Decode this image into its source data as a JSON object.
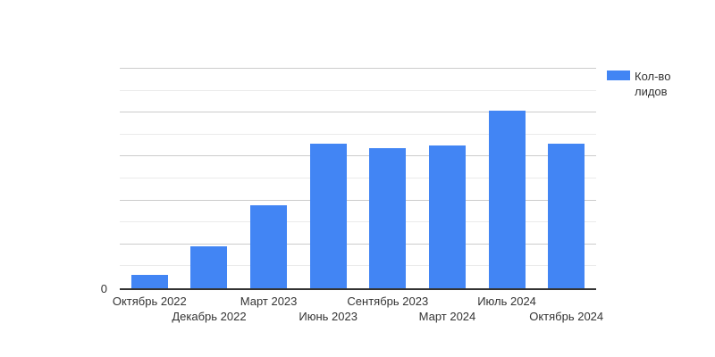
{
  "chart_data": {
    "type": "bar",
    "title": "",
    "xlabel": "",
    "ylabel": "",
    "categories": [
      "Октябрь 2022",
      "Декабрь 2022",
      "Март 2023",
      "Июнь 2023",
      "Сентябрь 2023",
      "Март 2024",
      "Июль 2024",
      "Октябрь 2024"
    ],
    "series": [
      {
        "name": "Кол-во лидов",
        "values": [
          6,
          19,
          38,
          66,
          64,
          65,
          81,
          66
        ]
      }
    ],
    "ylim": [
      0,
      100
    ],
    "y_axis_tick_labels": [
      "0"
    ],
    "gridlines": {
      "minor_step": 10,
      "major_step": 20,
      "major_color": "#cccccc",
      "minor_color": "#ebebeb"
    },
    "legend_position": "right",
    "grid": true
  },
  "axes": {
    "y_zero_label": "0"
  },
  "legend": {
    "label": "Кол-во лидов",
    "swatch_color": "#4285f4"
  },
  "colors": {
    "bar": "#4285f4",
    "axis_line": "#333333",
    "text": "#333333",
    "major_grid": "#cccccc",
    "minor_grid": "#ebebeb",
    "background": "#ffffff"
  }
}
